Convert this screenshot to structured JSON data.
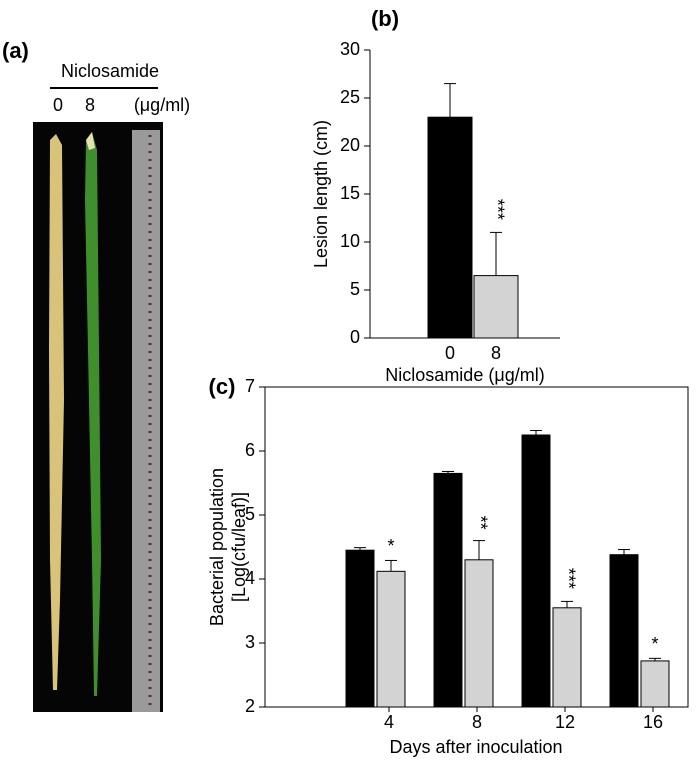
{
  "panel_a": {
    "label": "(a)",
    "treatment": "Niclosamide",
    "doses": [
      "0",
      "8"
    ],
    "unit": "(μg/ml)"
  },
  "chart_data": [
    {
      "type": "bar",
      "panel_label": "(b)",
      "x_label": "Niclosamide (μg/ml)",
      "y_label": "Lesion length (cm)",
      "categories": [
        "0",
        "8"
      ],
      "series": [
        {
          "color": "#000000",
          "values": [
            23,
            6.5
          ],
          "errors": [
            3.5,
            4.5
          ],
          "annotations": [
            null,
            "***"
          ],
          "bar_index": [
            0,
            1
          ]
        }
      ],
      "ylim": [
        0,
        30
      ],
      "yticks": [
        0,
        5,
        10,
        15,
        20,
        25,
        30
      ],
      "frame": false
    },
    {
      "type": "bar",
      "panel_label": "(c)",
      "x_label": "Days after inoculation",
      "y_label": [
        "Bacterial population",
        "[Log(cfu/leaf)]"
      ],
      "categories": [
        "4",
        "8",
        "12",
        "16"
      ],
      "series": [
        {
          "color": "#000000",
          "values": [
            4.45,
            5.65,
            6.25,
            4.38
          ],
          "errors": [
            0.04,
            0.03,
            0.07,
            0.08
          ],
          "annotations": [
            null,
            null,
            null,
            null
          ]
        },
        {
          "color": "#d3d3d3",
          "values": [
            4.12,
            4.3,
            3.55,
            2.72
          ],
          "errors": [
            0.17,
            0.3,
            0.1,
            0.04
          ],
          "annotations": [
            "*",
            "**",
            "***",
            "*"
          ]
        }
      ],
      "ylim": [
        2,
        7
      ],
      "yticks": [
        2,
        3,
        4,
        5,
        6,
        7
      ],
      "frame": true
    }
  ]
}
